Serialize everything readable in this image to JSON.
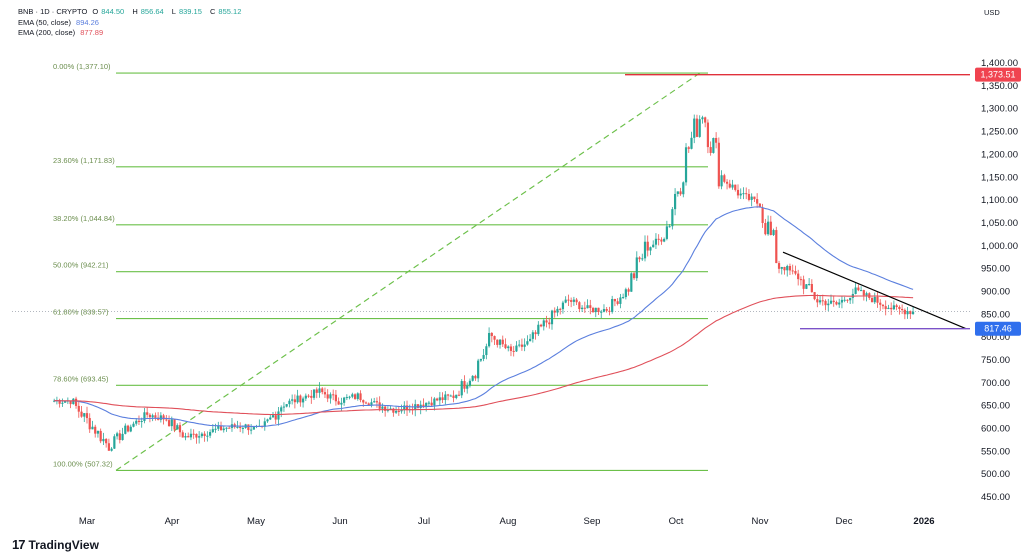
{
  "header": {
    "title": "BNB · 1D · CRYPTO",
    "ohlc": [
      {
        "key": "O",
        "value": "844.50"
      },
      {
        "key": "H",
        "value": "856.64"
      },
      {
        "key": "L",
        "value": "839.15"
      },
      {
        "key": "C",
        "value": "855.12"
      }
    ],
    "indicators": [
      {
        "label": "EMA (50, close)",
        "value": "894.26",
        "color": "#5b7fde"
      },
      {
        "label": "EMA (200, close)",
        "value": "877.89",
        "color": "#e0505a"
      }
    ],
    "currency": "USD"
  },
  "footer": {
    "brand": "TradingView"
  },
  "colors": {
    "up": "#26a69a",
    "down": "#ef5350",
    "fib": "#6cc04a",
    "ema50": "#5b7fde",
    "ema200": "#e0505a",
    "resistance": "#e0303c",
    "support": "#7b52c8",
    "trend": "#000000",
    "tag_red": "#f0434f",
    "tag_blue": "#2f6fed"
  },
  "chart_data": {
    "type": "candlestick",
    "symbol": "BNB",
    "timeframe": "1D",
    "x_labels": [
      "Mar",
      "Apr",
      "May",
      "Jun",
      "Jul",
      "Aug",
      "Sep",
      "Oct",
      "Nov",
      "Dec",
      "2026"
    ],
    "y_ticks": [
      450,
      500,
      550,
      600,
      650,
      700,
      750,
      800,
      850,
      900,
      950,
      1000,
      1050,
      1100,
      1150,
      1200,
      1250,
      1300,
      1350,
      1400
    ],
    "y_tick_labels": [
      "450.00",
      "500.00",
      "550.00",
      "600.00",
      "650.00",
      "700.00",
      "750.00",
      "800.00",
      "850.00",
      "900.00",
      "950.00",
      "1,000.00",
      "1,050.00",
      "1,100.00",
      "1,150.00",
      "1,200.00",
      "1,250.00",
      "1,300.00",
      "1,350.00",
      "1,400.00"
    ],
    "ylim": [
      425,
      1445
    ],
    "fibonacci": [
      {
        "label": "0.00% (1,377.10)",
        "level": 1377.1
      },
      {
        "label": "23.60% (1,171.83)",
        "level": 1171.83
      },
      {
        "label": "38.20% (1,044.84)",
        "level": 1044.84
      },
      {
        "label": "50.00% (942.21)",
        "level": 942.21
      },
      {
        "label": "61.80% (839.57)",
        "level": 839.57
      },
      {
        "label": "78.60% (693.45)",
        "level": 693.45
      },
      {
        "label": "100.00% (507.32)",
        "level": 507.32
      }
    ],
    "price_tags": [
      {
        "label": "1,373.51",
        "value": 1373.51,
        "color": "#f0434f"
      },
      {
        "label": "817.46",
        "value": 817.46,
        "color": "#2f6fed"
      }
    ],
    "current_price": 855.12,
    "weekly_closes": [
      {
        "week": "2025-02-17",
        "close": 660
      },
      {
        "week": "2025-02-24",
        "close": 610
      },
      {
        "week": "2025-03-03",
        "close": 560
      },
      {
        "week": "2025-03-10",
        "close": 600
      },
      {
        "week": "2025-03-17",
        "close": 630
      },
      {
        "week": "2025-03-24",
        "close": 620
      },
      {
        "week": "2025-03-31",
        "close": 580
      },
      {
        "week": "2025-04-07",
        "close": 590
      },
      {
        "week": "2025-04-14",
        "close": 600
      },
      {
        "week": "2025-04-21",
        "close": 605
      },
      {
        "week": "2025-04-28",
        "close": 595
      },
      {
        "week": "2025-05-05",
        "close": 650
      },
      {
        "week": "2025-05-12",
        "close": 665
      },
      {
        "week": "2025-05-19",
        "close": 680
      },
      {
        "week": "2025-05-26",
        "close": 660
      },
      {
        "week": "2025-06-02",
        "close": 670
      },
      {
        "week": "2025-06-09",
        "close": 650
      },
      {
        "week": "2025-06-16",
        "close": 640
      },
      {
        "week": "2025-06-23",
        "close": 650
      },
      {
        "week": "2025-06-30",
        "close": 660
      },
      {
        "week": "2025-07-07",
        "close": 670
      },
      {
        "week": "2025-07-14",
        "close": 720
      },
      {
        "week": "2025-07-21",
        "close": 800
      },
      {
        "week": "2025-07-28",
        "close": 765
      },
      {
        "week": "2025-08-04",
        "close": 790
      },
      {
        "week": "2025-08-11",
        "close": 840
      },
      {
        "week": "2025-08-18",
        "close": 880
      },
      {
        "week": "2025-08-25",
        "close": 860
      },
      {
        "week": "2025-09-01",
        "close": 860
      },
      {
        "week": "2025-09-08",
        "close": 900
      },
      {
        "week": "2025-09-15",
        "close": 990
      },
      {
        "week": "2025-09-22",
        "close": 1020
      },
      {
        "week": "2025-09-29",
        "close": 1180
      },
      {
        "week": "2025-10-06",
        "close": 1300
      },
      {
        "week": "2025-10-13",
        "close": 1150
      },
      {
        "week": "2025-10-20",
        "close": 1110
      },
      {
        "week": "2025-10-27",
        "close": 1090
      },
      {
        "week": "2025-11-03",
        "close": 960
      },
      {
        "week": "2025-11-10",
        "close": 930
      },
      {
        "week": "2025-11-17",
        "close": 880
      },
      {
        "week": "2025-11-24",
        "close": 870
      },
      {
        "week": "2025-12-01",
        "close": 900
      },
      {
        "week": "2025-12-08",
        "close": 880
      },
      {
        "week": "2025-12-15",
        "close": 860
      },
      {
        "week": "2025-12-22",
        "close": 855
      }
    ]
  }
}
